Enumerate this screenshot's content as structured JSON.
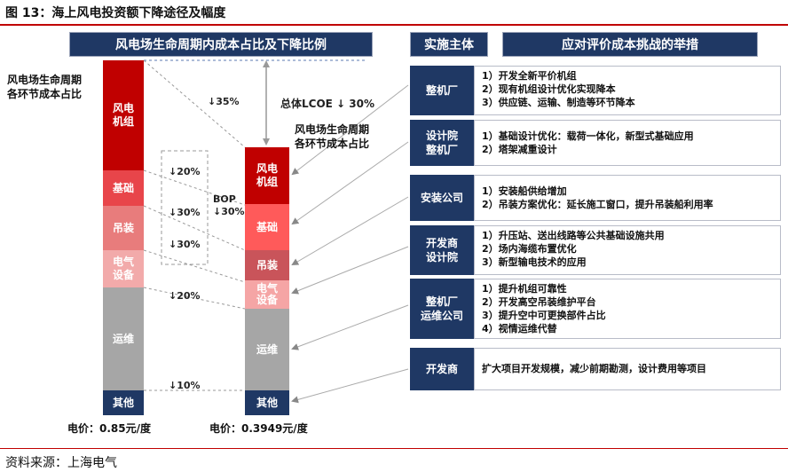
{
  "figure_title": "图 13：海上风电投资额下降途径及幅度",
  "left_header": "风电场生命周期内成本占比及下降比例",
  "left_side_label": [
    "风电场生命周期",
    "各环节成本占比"
  ],
  "mid_side_label": [
    "风电场生命周期",
    "各环节成本占比"
  ],
  "total_lcoe": "总体LCOE ↓ 30%",
  "bop_label": [
    "BOP",
    "↓30%"
  ],
  "left_bar_segments": [
    {
      "name": "风电机组",
      "color": "#c00000"
    },
    {
      "name": "基础",
      "color": "#e8454a"
    },
    {
      "name": "吊装",
      "color": "#e87c7c"
    },
    {
      "name": "电气设备",
      "color": "#f2aaaa"
    },
    {
      "name": "运维",
      "color": "#a6a6a6"
    },
    {
      "name": "其他",
      "color": "#1f3864"
    }
  ],
  "right_bar_segments": [
    {
      "name": "风电机组",
      "color": "#c00000"
    },
    {
      "name": "基础",
      "color": "#ff5a5a"
    },
    {
      "name": "吊装",
      "color": "#c9545a"
    },
    {
      "name": "电气设备",
      "color": "#f5a5a5"
    },
    {
      "name": "运维",
      "color": "#a6a6a6"
    },
    {
      "name": "其他",
      "color": "#1f3864"
    }
  ],
  "reductions": [
    "↓35%",
    "↓20%",
    "↓30%",
    "↓30%",
    "↓20%",
    "↓10%"
  ],
  "left_price": "电价：0.85元/度",
  "right_price": "电价：0.3949元/度",
  "actor_header": "实施主体",
  "measures_header": "应对评价成本挑战的举措",
  "rows": [
    {
      "actor": [
        "整机厂"
      ],
      "measures": [
        "1）开发全新平价机组",
        "2）现有机组设计优化实现降本",
        "3）供应链、运输、制造等环节降本"
      ]
    },
    {
      "actor": [
        "设计院",
        "整机厂"
      ],
      "measures": [
        "1）基础设计优化：载荷一体化，新型式基础应用",
        "2）塔架减重设计"
      ]
    },
    {
      "actor": [
        "安装公司"
      ],
      "measures": [
        "1）安装船供给增加",
        "2）吊装方案优化：延长施工窗口，提升吊装船利用率"
      ]
    },
    {
      "actor": [
        "开发商",
        "设计院"
      ],
      "measures": [
        "1）升压站、送出线路等公共基础设施共用",
        "2）场内海缆布置优化",
        "3）新型输电技术的应用"
      ]
    },
    {
      "actor": [
        "整机厂",
        "运维公司"
      ],
      "measures": [
        "1）提升机组可靠性",
        "2）开发高空吊装维护平台",
        "3）提升空中可更换部件占比",
        "4）视情运维代替"
      ]
    },
    {
      "actor": [
        "开发商"
      ],
      "measures": [
        "扩大项目开发规模，减少前期勘测，设计费用等项目"
      ]
    }
  ],
  "source": "资料来源：上海电气"
}
